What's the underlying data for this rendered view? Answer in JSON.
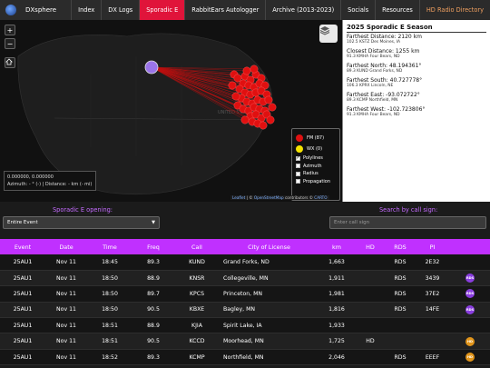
{
  "brand": "DXsphere",
  "nav": [
    {
      "label": "Index",
      "active": false
    },
    {
      "label": "DX Logs",
      "active": false
    },
    {
      "label": "Sporadic E",
      "active": true
    },
    {
      "label": "RabbitEars Autologger",
      "active": false
    },
    {
      "label": "Archive (2013-2023)",
      "active": false
    },
    {
      "label": "Socials",
      "active": false
    },
    {
      "label": "Resources",
      "active": false
    },
    {
      "label": "HD Radio Directory",
      "active": false,
      "accent": true
    }
  ],
  "map": {
    "controls": {
      "zoom_in": "+",
      "zoom_out": "−"
    },
    "country_label": "UNITED STATES",
    "coords": "0.000000, 0.000000",
    "azimuth_line": "Azimuth: - ° (-) | Distance: - km (- mi)",
    "legend": {
      "fm": "FM (87)",
      "wx": "WX (0)",
      "polylines": "Polylines",
      "azimuth": "Azimuth",
      "radius": "Radius",
      "propagation": "Propagation",
      "polylines_checked": true
    },
    "attribution": {
      "leaflet": "Leaflet",
      "osm": "OpenStreetMap",
      "contrib": "contributors ©",
      "carto": "CARTO"
    },
    "colors": {
      "fm": "#e01010",
      "wx": "#f5e400",
      "origin": "#9a74e8"
    }
  },
  "side": {
    "title": "2025 Sporadic E Season",
    "blocks": [
      {
        "head": "Farthest Distance: 2120 km",
        "sub": "102.5 KSTZ Des Moines, IA"
      },
      {
        "head": "Closest Distance: 1255 km",
        "sub": "91.3 KMHA Four Bears, ND"
      },
      {
        "head": "Farthest North: 48.194361°",
        "sub": "89.3 KUND Grand Forks, ND"
      },
      {
        "head": "Farthest South: 40.727778°",
        "sub": "106.3 KPRX Lincoln, NE"
      },
      {
        "head": "Farthest East: -93.072722°",
        "sub": "89.3 KCMP Northfield, MN"
      },
      {
        "head": "Farthest West: -102.723806°",
        "sub": "91.3 KMHA Four Bears, ND"
      }
    ]
  },
  "filter": {
    "opening_label": "Sporadic E opening:",
    "opening_value": "Entire Event",
    "search_label": "Search by call sign:",
    "search_placeholder": "Enter call sign"
  },
  "table": {
    "headers": [
      "Event",
      "Date",
      "Time",
      "Freq",
      "Call",
      "City of License",
      "km",
      "HD",
      "RDS",
      "PI",
      ""
    ],
    "rows": [
      {
        "event": "25AU1",
        "date": "Nov 11",
        "time": "18:45",
        "freq": "89.3",
        "call": "KUND",
        "city": "Grand Forks, ND",
        "km": "1,663",
        "hd": "",
        "rds": "RDS",
        "pi": "2E32",
        "badge": ""
      },
      {
        "event": "25AU1",
        "date": "Nov 11",
        "time": "18:50",
        "freq": "88.9",
        "call": "KNSR",
        "city": "Collegeville, MN",
        "km": "1,911",
        "hd": "",
        "rds": "RDS",
        "pi": "3439",
        "badge": "RDS"
      },
      {
        "event": "25AU1",
        "date": "Nov 11",
        "time": "18:50",
        "freq": "89.7",
        "call": "KPCS",
        "city": "Princeton, MN",
        "km": "1,981",
        "hd": "",
        "rds": "RDS",
        "pi": "37E2",
        "badge": "RDS"
      },
      {
        "event": "25AU1",
        "date": "Nov 11",
        "time": "18:50",
        "freq": "90.5",
        "call": "KBXE",
        "city": "Bagley, MN",
        "km": "1,816",
        "hd": "",
        "rds": "RDS",
        "pi": "14FE",
        "badge": "RDS"
      },
      {
        "event": "25AU1",
        "date": "Nov 11",
        "time": "18:51",
        "freq": "88.9",
        "call": "KJIA",
        "city": "Spirit Lake, IA",
        "km": "1,933",
        "hd": "",
        "rds": "",
        "pi": "",
        "badge": ""
      },
      {
        "event": "25AU1",
        "date": "Nov 11",
        "time": "18:51",
        "freq": "90.5",
        "call": "KCCD",
        "city": "Moorhead, MN",
        "km": "1,725",
        "hd": "HD",
        "rds": "",
        "pi": "",
        "badge": "HD"
      },
      {
        "event": "25AU1",
        "date": "Nov 11",
        "time": "18:52",
        "freq": "89.3",
        "call": "KCMP",
        "city": "Northfield, MN",
        "km": "2,046",
        "hd": "",
        "rds": "RDS",
        "pi": "EEEF",
        "badge": "HD"
      }
    ],
    "colors": {
      "header": "#c030ff",
      "rds_badge": "#8a3de0",
      "hd_badge": "#e0941a"
    }
  }
}
